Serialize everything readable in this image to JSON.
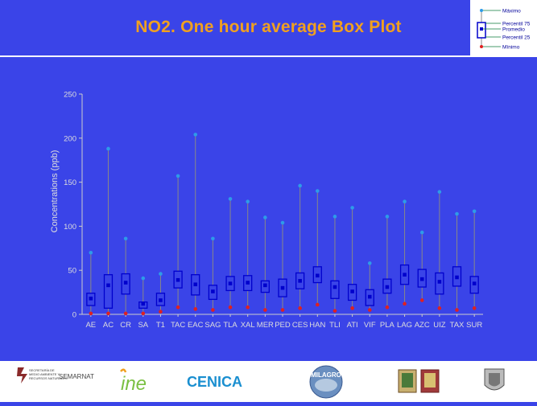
{
  "title": "NO2. One hour average Box Plot",
  "legend": {
    "max": "Máximo",
    "p75": "Percentil 75",
    "mean": "Promedio",
    "p25": "Percentil 25",
    "min": "Mínimo"
  },
  "colors": {
    "background": "#3a44e8",
    "title": "#f0a020",
    "box": "#0000cc",
    "mean": "#0000cc",
    "max": "#2e9be8",
    "min": "#e02020",
    "whisker": "#888888"
  },
  "footer": {
    "logo1_line1": "SECRETARÍA DE",
    "logo1_line2": "MEDIO AMBIENTE Y",
    "logo1_line3": "RECURSOS NATURALES",
    "logo1_brand": "SEMARNAT",
    "logo2": "ine",
    "logo3": "CENICA",
    "logo4": "MILAGRO"
  },
  "chart_data": {
    "type": "box",
    "title": "",
    "xlabel": "",
    "ylabel": "Concentrations (ppb)",
    "ylim": [
      0,
      250
    ],
    "yticks": [
      0,
      50,
      100,
      150,
      200,
      250
    ],
    "grid": false,
    "categories": [
      "AE",
      "AC",
      "CR",
      "SA",
      "T1",
      "TAC",
      "EAC",
      "SAG",
      "TLA",
      "XAL",
      "MER",
      "PED",
      "CES",
      "HAN",
      "TLI",
      "ATI",
      "VIF",
      "PLA",
      "LAG",
      "AZC",
      "UIZ",
      "TAX",
      "SUR"
    ],
    "max": [
      70,
      188,
      86,
      41,
      46,
      157,
      204,
      86,
      131,
      128,
      110,
      104,
      146,
      140,
      111,
      121,
      58,
      111,
      128,
      93,
      139,
      114,
      117
    ],
    "p75": [
      24,
      45,
      46,
      14,
      24,
      49,
      45,
      33,
      43,
      44,
      38,
      40,
      47,
      54,
      38,
      34,
      28,
      40,
      56,
      51,
      47,
      54,
      43
    ],
    "mean": [
      18,
      33,
      36,
      12,
      16,
      39,
      34,
      26,
      35,
      36,
      33,
      30,
      38,
      44,
      31,
      26,
      20,
      31,
      45,
      40,
      37,
      42,
      35
    ],
    "p25": [
      10,
      7,
      23,
      7,
      10,
      30,
      22,
      17,
      27,
      27,
      25,
      20,
      29,
      36,
      18,
      16,
      10,
      24,
      34,
      31,
      23,
      32,
      24
    ],
    "min": [
      1,
      1,
      1,
      1,
      3,
      8,
      6,
      5,
      8,
      8,
      5,
      5,
      7,
      11,
      4,
      7,
      5,
      8,
      12,
      16,
      7,
      5,
      7
    ]
  }
}
